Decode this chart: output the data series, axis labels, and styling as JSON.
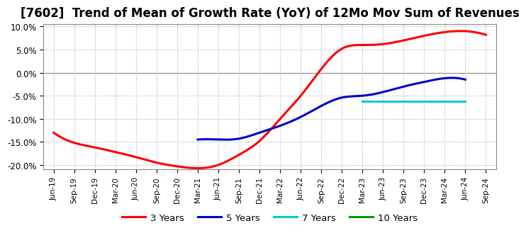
{
  "title": "[7602]  Trend of Mean of Growth Rate (YoY) of 12Mo Mov Sum of Revenues",
  "title_fontsize": 12,
  "ylim": [
    -0.21,
    0.105
  ],
  "yticks": [
    -0.2,
    -0.15,
    -0.1,
    -0.05,
    0.0,
    0.05,
    0.1
  ],
  "background_color": "#ffffff",
  "plot_bg_color": "#ffffff",
  "grid_color": "#aaaaaa",
  "legend_labels": [
    "3 Years",
    "5 Years",
    "7 Years",
    "10 Years"
  ],
  "legend_colors": [
    "#ff0000",
    "#0000cc",
    "#00cccc",
    "#009900"
  ],
  "x_labels": [
    "Jun-19",
    "Sep-19",
    "Dec-19",
    "Mar-20",
    "Jun-20",
    "Sep-20",
    "Dec-20",
    "Mar-21",
    "Jun-21",
    "Sep-21",
    "Dec-21",
    "Mar-22",
    "Jun-22",
    "Sep-22",
    "Dec-22",
    "Mar-23",
    "Jun-23",
    "Sep-23",
    "Dec-23",
    "Mar-24",
    "Jun-24",
    "Sep-24"
  ],
  "series_3y_x": [
    0,
    1,
    2,
    3,
    4,
    5,
    6,
    7,
    8,
    9,
    10,
    11,
    12,
    13,
    14,
    15,
    16,
    17,
    18,
    19,
    20,
    21
  ],
  "series_3y_y": [
    -0.13,
    -0.152,
    -0.162,
    -0.172,
    -0.183,
    -0.195,
    -0.203,
    -0.207,
    -0.2,
    -0.178,
    -0.148,
    -0.1,
    -0.05,
    0.008,
    0.052,
    0.06,
    0.062,
    0.07,
    0.08,
    0.088,
    0.09,
    0.082
  ],
  "series_5y_x": [
    7,
    8,
    9,
    10,
    11,
    12,
    13,
    14,
    15,
    16,
    17,
    18,
    19,
    20
  ],
  "series_5y_y": [
    -0.145,
    -0.145,
    -0.143,
    -0.13,
    -0.115,
    -0.096,
    -0.072,
    -0.054,
    -0.05,
    -0.042,
    -0.03,
    -0.02,
    -0.012,
    -0.015
  ],
  "series_7y_x": [
    15,
    16,
    17,
    18,
    19,
    20
  ],
  "series_7y_y": [
    -0.062,
    -0.062,
    -0.062,
    -0.062,
    -0.062,
    -0.062
  ],
  "series_10y_x": [],
  "series_10y_y": []
}
